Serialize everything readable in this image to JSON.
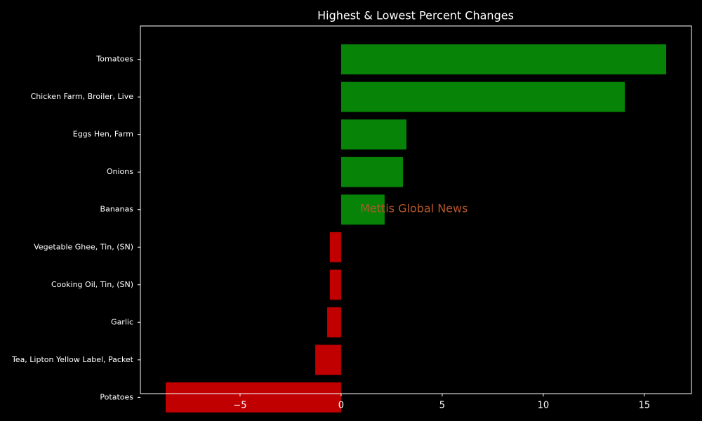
{
  "chart_data": {
    "type": "barh",
    "title": "Highest & Lowest Percent Changes",
    "annotation": "Mettis Global News",
    "categories": [
      "Tomatoes",
      "Chicken Farm, Broiler, Live",
      "Eggs Hen, Farm",
      "Onions",
      "Bananas",
      "Vegetable Ghee, Tin, (SN)",
      "Cooking Oil, Tin, (SN)",
      "Garlic",
      "Tea, Lipton Yellow Label, Packet",
      "Potatoes"
    ],
    "values": [
      16.08,
      14.03,
      3.23,
      3.06,
      2.15,
      -0.56,
      -0.56,
      -0.69,
      -1.28,
      -8.68
    ],
    "colors": [
      "#078307",
      "#078307",
      "#078307",
      "#078307",
      "#078307",
      "#c00000",
      "#c00000",
      "#c00000",
      "#c00000",
      "#c00000"
    ],
    "xlim": [
      -9.93,
      17.33
    ],
    "xticks": [
      {
        "value": -5,
        "label": "−5"
      },
      0,
      5,
      10,
      15
    ]
  }
}
